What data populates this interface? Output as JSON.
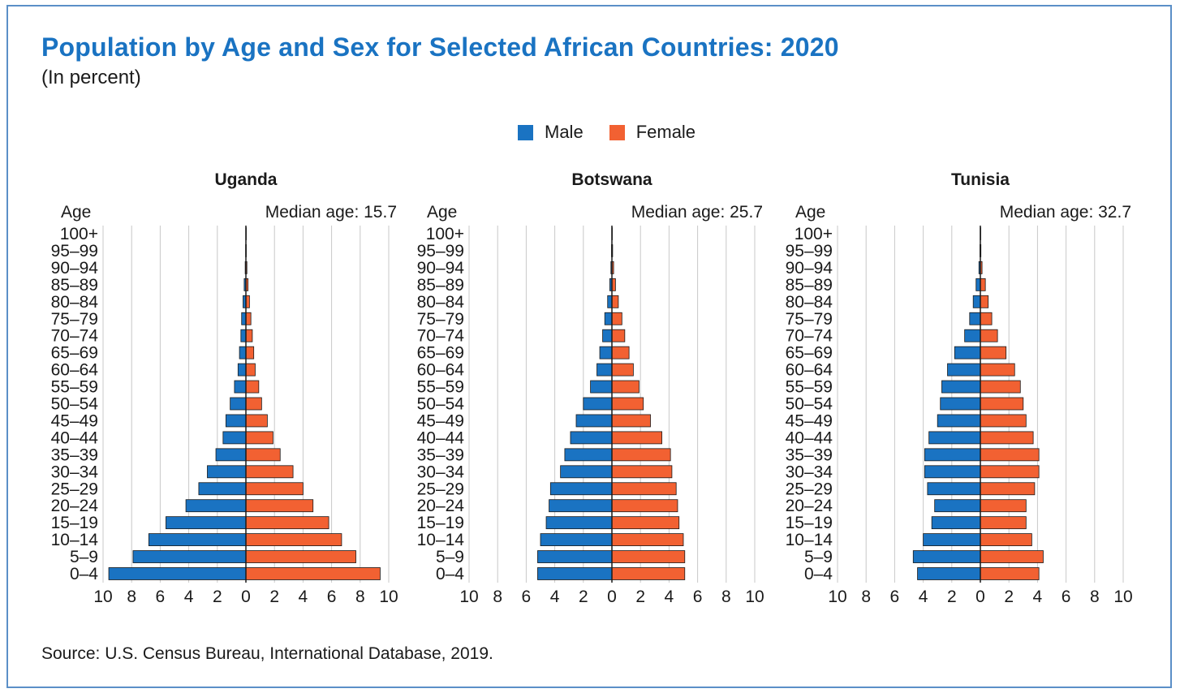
{
  "title": "Population by Age and Sex for Selected African Countries: 2020",
  "subtitle": "(In percent)",
  "legend": {
    "male": {
      "label": "Male",
      "color": "#1a73c2"
    },
    "female": {
      "label": "Female",
      "color": "#f26132"
    }
  },
  "source": "Source: U.S. Census Bureau, International Database, 2019.",
  "chart_data": [
    {
      "type": "bar",
      "orientation": "population-pyramid",
      "title": "Uganda",
      "age_axis_label": "Age",
      "median_label": "Median age: 15.7",
      "xlim": [
        -10,
        10
      ],
      "x_ticks": [
        "10",
        "8",
        "6",
        "4",
        "2",
        "0",
        "2",
        "4",
        "6",
        "8",
        "10"
      ],
      "categories": [
        "0-4",
        "5-9",
        "10-14",
        "15-19",
        "20-24",
        "25-29",
        "30-34",
        "35-39",
        "40-44",
        "45-49",
        "50-54",
        "55-59",
        "60-64",
        "65-69",
        "70-74",
        "75-79",
        "80-84",
        "85-89",
        "90-94",
        "95-99",
        "100+"
      ],
      "category_labels": [
        "0–4",
        "5–9",
        "10–14",
        "15–19",
        "20–24",
        "25–29",
        "30–34",
        "35–39",
        "40–44",
        "45–49",
        "50–54",
        "55–59",
        "60–64",
        "65–69",
        "70–74",
        "75–79",
        "80–84",
        "85–89",
        "90–94",
        "95–99",
        "100+"
      ],
      "series": [
        {
          "name": "Male",
          "values": [
            9.6,
            7.9,
            6.8,
            5.6,
            4.2,
            3.3,
            2.7,
            2.1,
            1.6,
            1.4,
            1.1,
            0.8,
            0.55,
            0.45,
            0.35,
            0.3,
            0.2,
            0.12,
            0.05,
            0.02,
            0.01
          ]
        },
        {
          "name": "Female",
          "values": [
            9.4,
            7.7,
            6.7,
            5.8,
            4.7,
            4.0,
            3.3,
            2.4,
            1.9,
            1.5,
            1.1,
            0.9,
            0.65,
            0.55,
            0.45,
            0.35,
            0.25,
            0.15,
            0.07,
            0.03,
            0.01
          ]
        }
      ]
    },
    {
      "type": "bar",
      "orientation": "population-pyramid",
      "title": "Botswana",
      "age_axis_label": "Age",
      "median_label": "Median age: 25.7",
      "xlim": [
        -10,
        10
      ],
      "x_ticks": [
        "10",
        "8",
        "6",
        "4",
        "2",
        "0",
        "2",
        "4",
        "6",
        "8",
        "10"
      ],
      "categories": [
        "0-4",
        "5-9",
        "10-14",
        "15-19",
        "20-24",
        "25-29",
        "30-34",
        "35-39",
        "40-44",
        "45-49",
        "50-54",
        "55-59",
        "60-64",
        "65-69",
        "70-74",
        "75-79",
        "80-84",
        "85-89",
        "90-94",
        "95-99",
        "100+"
      ],
      "category_labels": [
        "0–4",
        "5–9",
        "10–14",
        "15–19",
        "20–24",
        "25–29",
        "30–34",
        "35–39",
        "40–44",
        "45–49",
        "50–54",
        "55–59",
        "60–64",
        "65–69",
        "70–74",
        "75–79",
        "80–84",
        "85–89",
        "90–94",
        "95–99",
        "100+"
      ],
      "series": [
        {
          "name": "Male",
          "values": [
            5.2,
            5.2,
            5.0,
            4.6,
            4.4,
            4.3,
            3.6,
            3.3,
            2.9,
            2.5,
            2.0,
            1.5,
            1.05,
            0.85,
            0.65,
            0.5,
            0.3,
            0.15,
            0.07,
            0.03,
            0.01
          ]
        },
        {
          "name": "Female",
          "values": [
            5.1,
            5.1,
            5.0,
            4.7,
            4.6,
            4.5,
            4.2,
            4.1,
            3.5,
            2.7,
            2.2,
            1.9,
            1.5,
            1.2,
            0.9,
            0.7,
            0.45,
            0.25,
            0.12,
            0.05,
            0.02
          ]
        }
      ]
    },
    {
      "type": "bar",
      "orientation": "population-pyramid",
      "title": "Tunisia",
      "age_axis_label": "Age",
      "median_label": "Median age: 32.7",
      "xlim": [
        -10,
        10
      ],
      "x_ticks": [
        "10",
        "8",
        "6",
        "4",
        "2",
        "0",
        "2",
        "4",
        "6",
        "8",
        "10"
      ],
      "categories": [
        "0-4",
        "5-9",
        "10-14",
        "15-19",
        "20-24",
        "25-29",
        "30-34",
        "35-39",
        "40-44",
        "45-49",
        "50-54",
        "55-59",
        "60-64",
        "65-69",
        "70-74",
        "75-79",
        "80-84",
        "85-89",
        "90-94",
        "95-99",
        "100+"
      ],
      "category_labels": [
        "0–4",
        "5–9",
        "10–14",
        "15–19",
        "20–24",
        "25–29",
        "30–34",
        "35–39",
        "40–44",
        "45–49",
        "50–54",
        "55–59",
        "60–64",
        "65–69",
        "70–74",
        "75–79",
        "80–84",
        "85–89",
        "90–94",
        "95–99",
        "100+"
      ],
      "series": [
        {
          "name": "Male",
          "values": [
            4.4,
            4.7,
            4.0,
            3.4,
            3.2,
            3.7,
            3.9,
            3.9,
            3.6,
            3.0,
            2.8,
            2.7,
            2.3,
            1.8,
            1.1,
            0.75,
            0.5,
            0.3,
            0.1,
            0.03,
            0.01
          ]
        },
        {
          "name": "Female",
          "values": [
            4.1,
            4.4,
            3.6,
            3.2,
            3.2,
            3.8,
            4.1,
            4.1,
            3.7,
            3.2,
            3.0,
            2.8,
            2.4,
            1.8,
            1.2,
            0.8,
            0.55,
            0.35,
            0.12,
            0.04,
            0.01
          ]
        }
      ]
    }
  ]
}
